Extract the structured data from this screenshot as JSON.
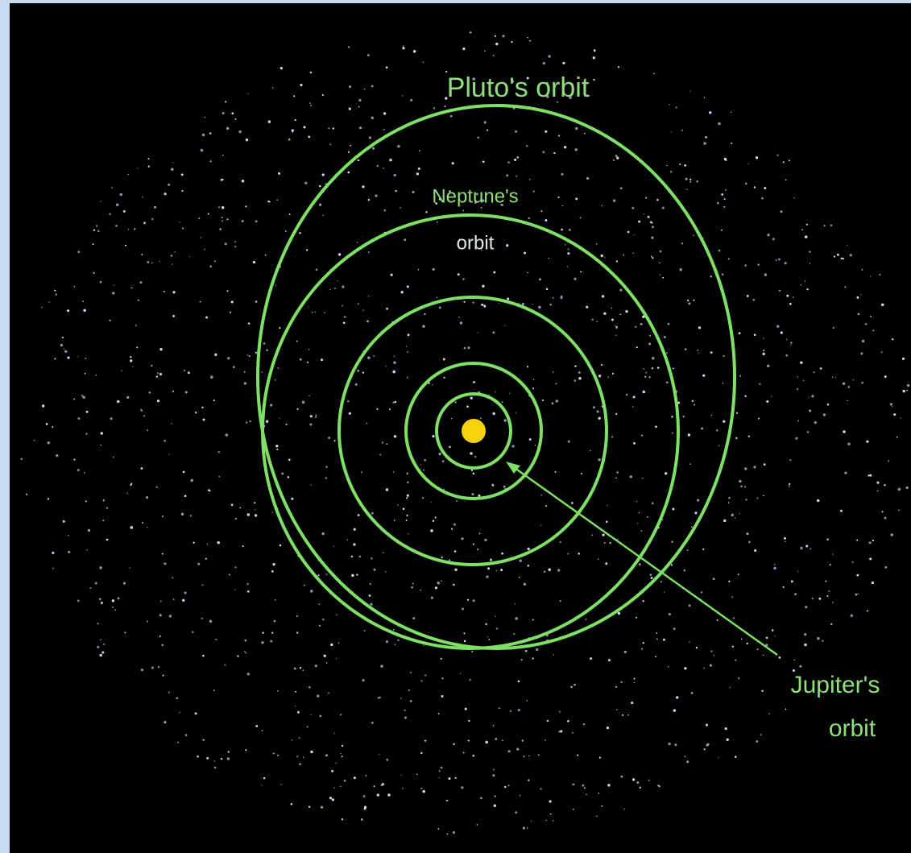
{
  "labels": {
    "pluto": "Pluto's orbit",
    "neptune_line1": "Neptune's",
    "neptune_line2": "orbit",
    "jupiter_line1": "Jupiter's",
    "jupiter_line2": "orbit"
  }
}
